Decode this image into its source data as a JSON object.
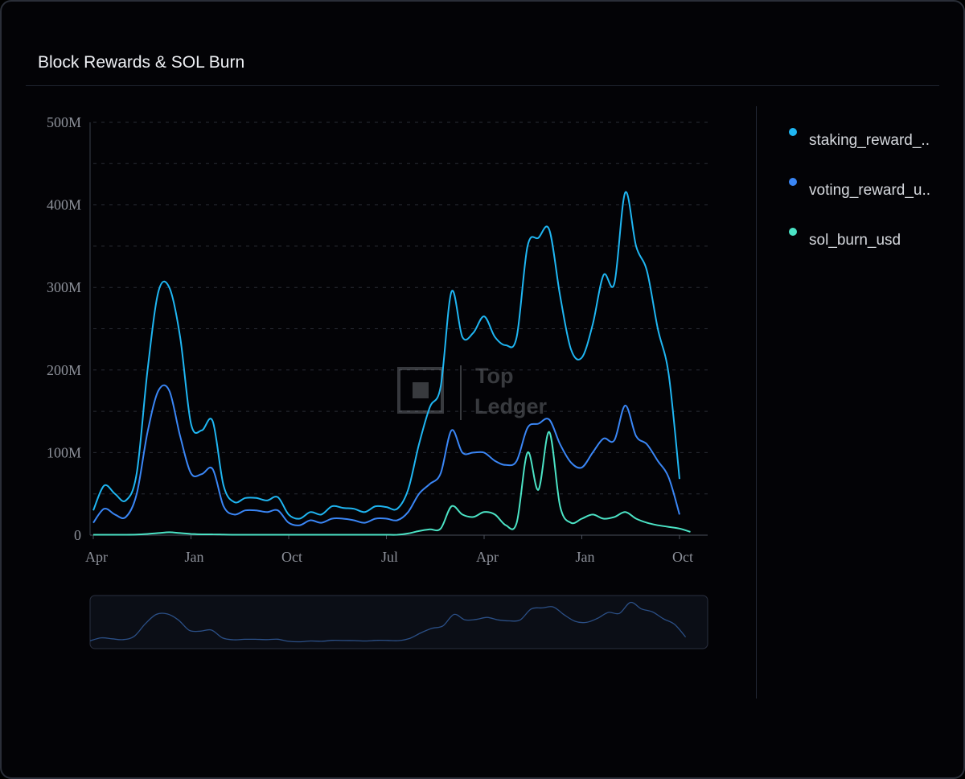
{
  "title": "Block Rewards & SOL Burn",
  "legend": [
    {
      "label": "staking_reward_..",
      "color": "#1fb6f2"
    },
    {
      "label": "voting_reward_u..",
      "color": "#3a86f5"
    },
    {
      "label": "sol_burn_usd",
      "color": "#4be3c5"
    }
  ],
  "watermark": {
    "line1": "Top",
    "line2": "Ledger"
  },
  "chart_data": {
    "type": "line",
    "title": "Block Rewards & SOL Burn",
    "xlabel": "",
    "ylabel": "",
    "x_ticks": [
      "Apr",
      "Jan",
      "Oct",
      "Jul",
      "Apr",
      "Jan",
      "Oct"
    ],
    "y_ticks": [
      "0",
      "100M",
      "200M",
      "300M",
      "400M",
      "500M"
    ],
    "ylim": [
      0,
      500
    ],
    "y_unit": "M",
    "grid": "horizontal dashed",
    "legend_position": "right",
    "x": [
      "2021-04",
      "2021-05",
      "2021-06",
      "2021-07",
      "2021-08",
      "2021-09",
      "2021-10",
      "2021-11",
      "2021-12",
      "2022-01",
      "2022-02",
      "2022-03",
      "2022-04",
      "2022-05",
      "2022-06",
      "2022-07",
      "2022-08",
      "2022-09",
      "2022-10",
      "2022-11",
      "2022-12",
      "2023-01",
      "2023-02",
      "2023-03",
      "2023-04",
      "2023-05",
      "2023-06",
      "2023-07",
      "2023-08",
      "2023-09",
      "2023-10",
      "2023-11",
      "2023-12",
      "2024-01",
      "2024-02",
      "2024-03",
      "2024-04",
      "2024-05",
      "2024-06",
      "2024-07",
      "2024-08",
      "2024-09",
      "2024-10",
      "2024-11",
      "2024-12",
      "2025-01",
      "2025-02",
      "2025-03",
      "2025-04",
      "2025-05",
      "2025-06",
      "2025-07",
      "2025-08",
      "2025-09",
      "2025-10",
      "2025-11",
      "2025-12"
    ],
    "series": [
      {
        "name": "staking_reward_..",
        "color": "#1fb6f2",
        "values": [
          30,
          60,
          50,
          42,
          75,
          200,
          295,
          300,
          240,
          135,
          127,
          138,
          60,
          40,
          45,
          45,
          42,
          46,
          25,
          20,
          28,
          25,
          35,
          33,
          32,
          28,
          35,
          34,
          32,
          55,
          110,
          155,
          180,
          295,
          240,
          245,
          265,
          240,
          230,
          240,
          350,
          360,
          370,
          290,
          225,
          215,
          255,
          315,
          305,
          415,
          350,
          320,
          250,
          195,
          68,
          null,
          null
        ]
      },
      {
        "name": "voting_reward_u..",
        "color": "#3a86f5",
        "values": [
          15,
          32,
          25,
          22,
          50,
          125,
          175,
          175,
          120,
          75,
          74,
          80,
          35,
          25,
          30,
          30,
          28,
          30,
          15,
          12,
          18,
          15,
          20,
          20,
          18,
          15,
          20,
          20,
          18,
          28,
          50,
          62,
          75,
          127,
          100,
          100,
          100,
          90,
          85,
          90,
          130,
          135,
          140,
          110,
          88,
          82,
          100,
          117,
          115,
          157,
          120,
          110,
          90,
          70,
          25,
          null,
          null
        ]
      },
      {
        "name": "sol_burn_usd",
        "color": "#4be3c5",
        "values": [
          0.5,
          0.5,
          0.5,
          0.5,
          0.7,
          1.5,
          2.5,
          3.5,
          2.5,
          1.5,
          1,
          1,
          0.7,
          0.5,
          0.5,
          0.5,
          0.5,
          0.5,
          0.5,
          0.5,
          0.5,
          0.5,
          0.5,
          0.5,
          0.5,
          0.5,
          0.5,
          0.5,
          0.5,
          2,
          5,
          7,
          8,
          35,
          25,
          22,
          28,
          25,
          12,
          15,
          100,
          55,
          125,
          35,
          15,
          20,
          25,
          20,
          22,
          28,
          20,
          15,
          12,
          10,
          8,
          4,
          null
        ]
      }
    ]
  }
}
